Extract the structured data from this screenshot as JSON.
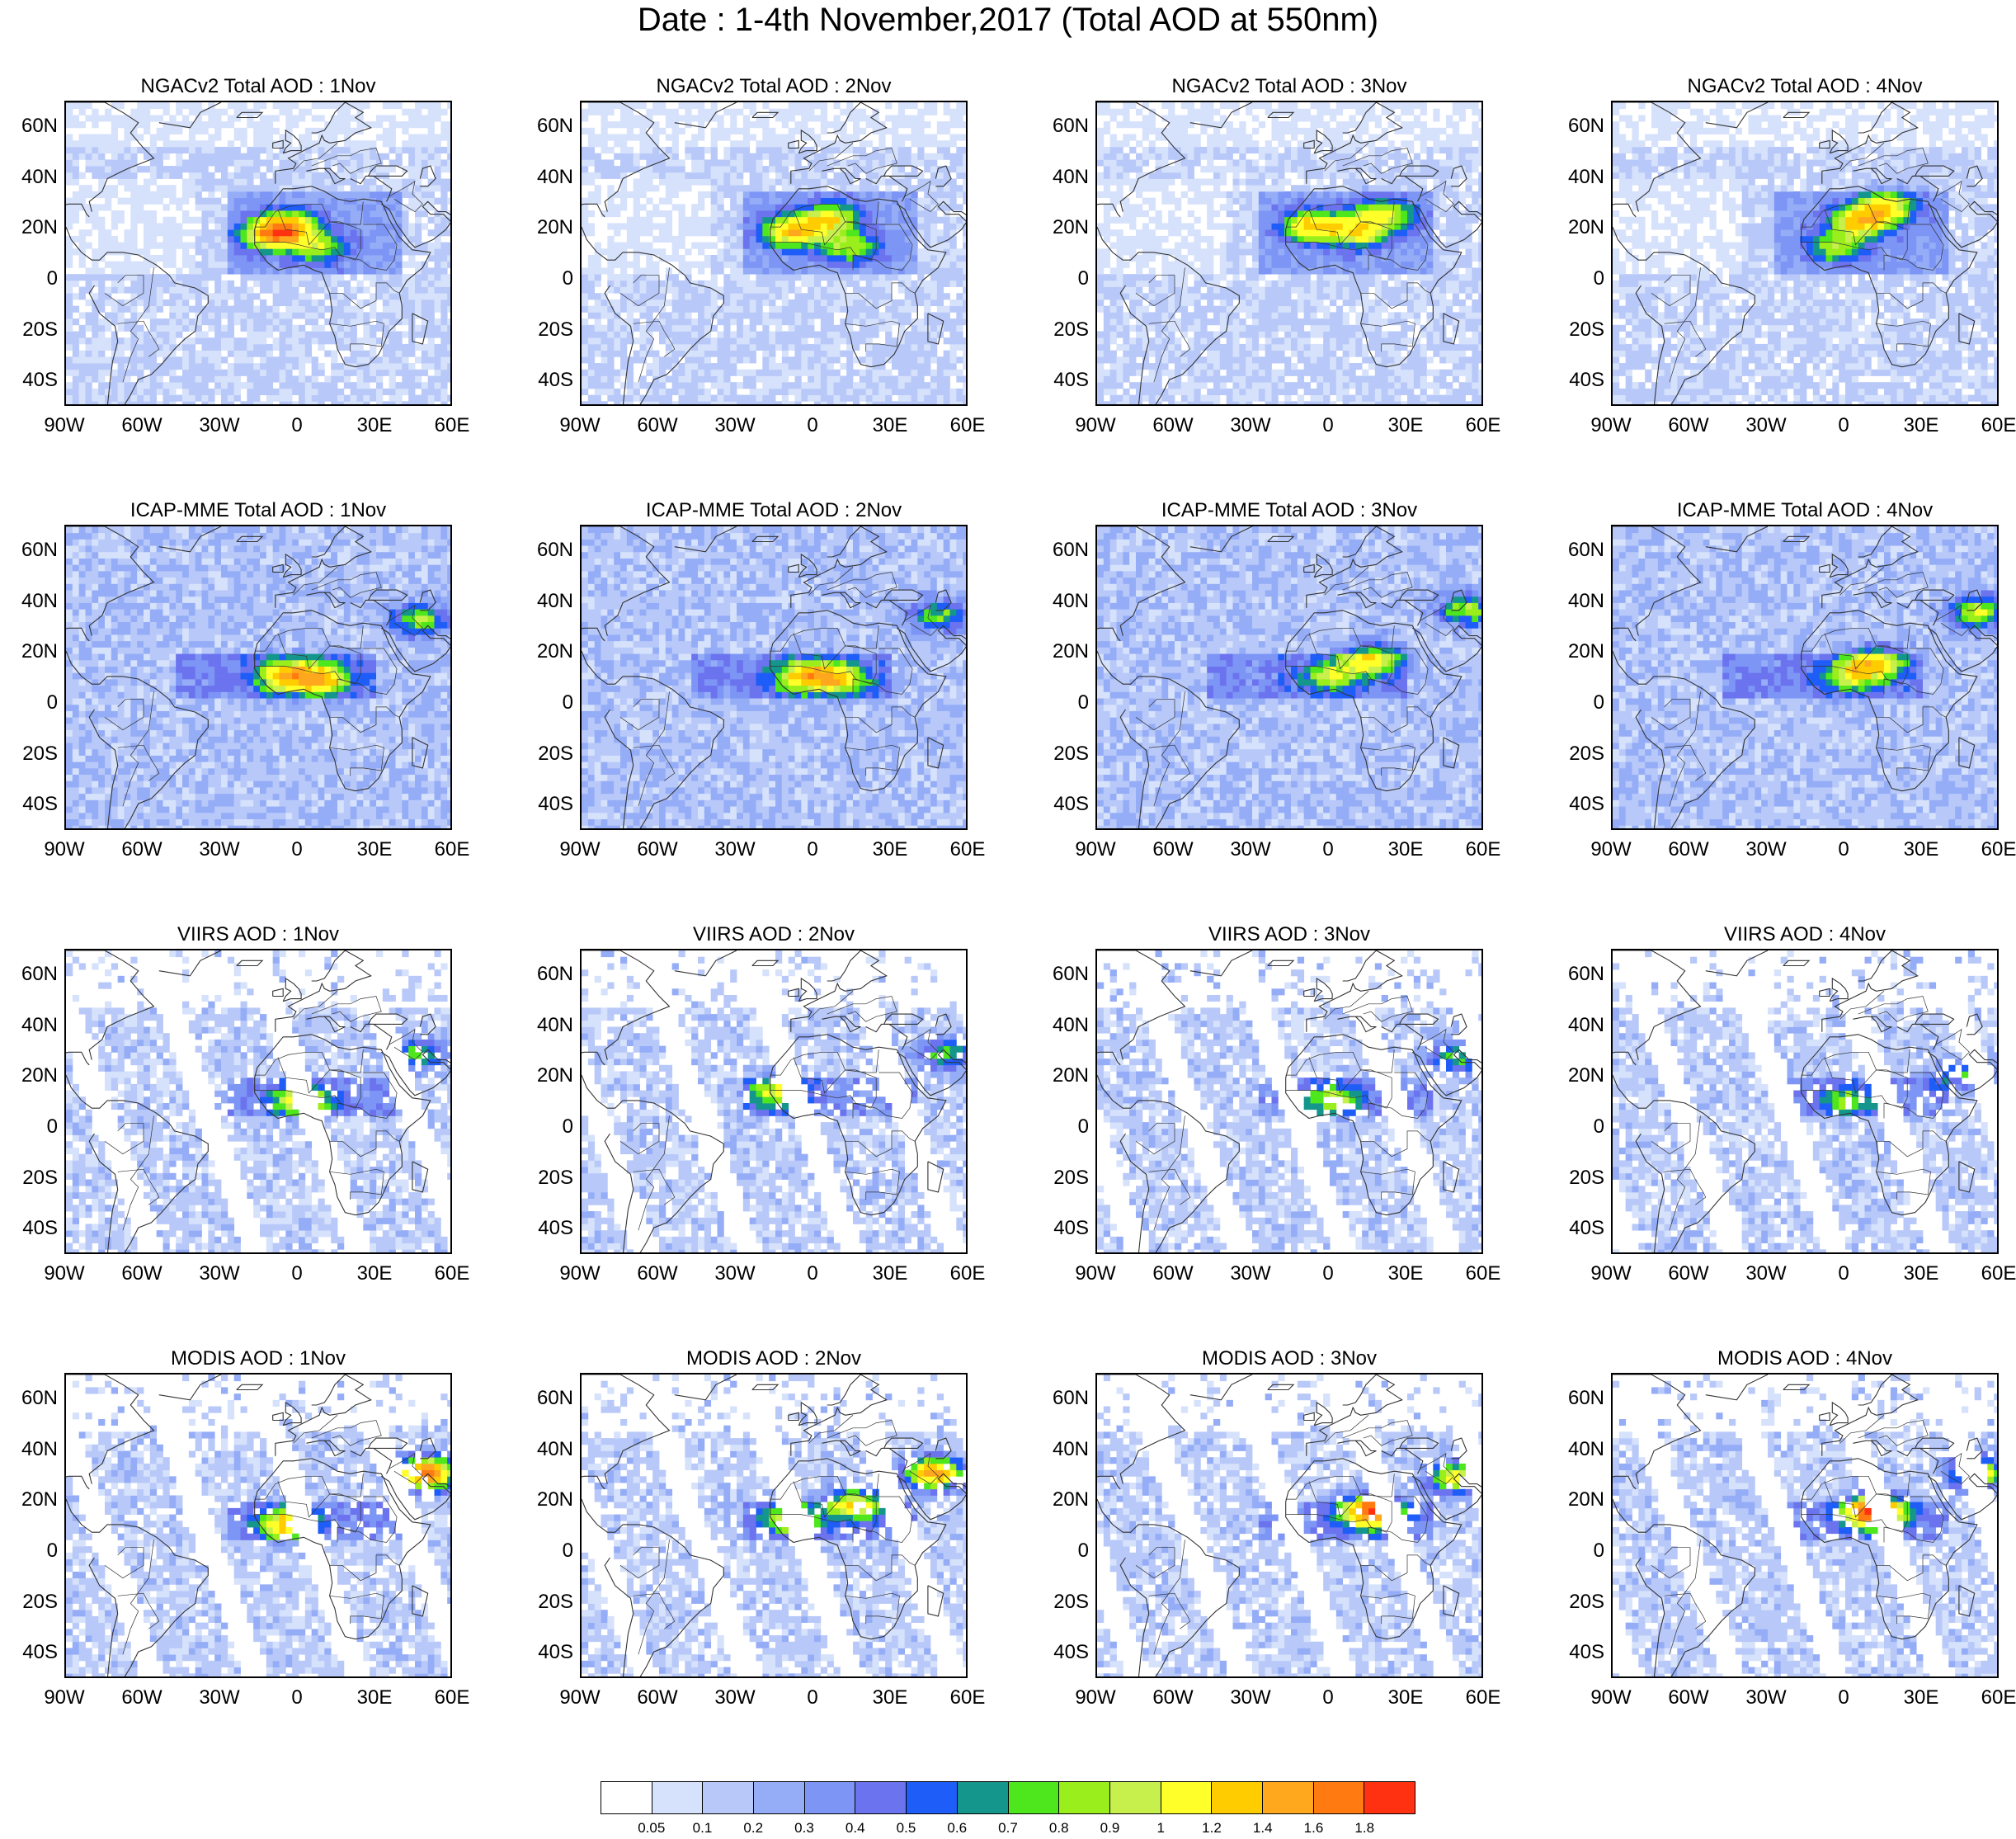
{
  "title": "Date : 1-4th November,2017 (Total AOD at 550nm)",
  "lat_ticks": [
    "60N",
    "40N",
    "20N",
    "0",
    "20S",
    "40S"
  ],
  "lon_ticks": [
    "90W",
    "60W",
    "30W",
    "0",
    "30E",
    "60E"
  ],
  "map_extent": {
    "lon": [
      -90,
      60
    ],
    "lat": [
      -50,
      70
    ]
  },
  "panels": [
    {
      "row": 0,
      "col": 0,
      "title": "NGACv2 Total AOD : 1Nov",
      "type": "model",
      "hot": [
        [
          -12,
          17,
          1
        ],
        [
          -5,
          20,
          0.85
        ],
        [
          6,
          12,
          0.6
        ]
      ],
      "level": "low"
    },
    {
      "row": 0,
      "col": 1,
      "title": "NGACv2 Total AOD : 2Nov",
      "type": "model",
      "hot": [
        [
          -10,
          18,
          1
        ],
        [
          5,
          23,
          0.8
        ],
        [
          12,
          12,
          0.6
        ]
      ],
      "level": "low"
    },
    {
      "row": 0,
      "col": 2,
      "title": "NGACv2 Total AOD : 3Nov",
      "type": "model",
      "hot": [
        [
          -8,
          20,
          1
        ],
        [
          10,
          18,
          0.8
        ],
        [
          20,
          25,
          0.7
        ]
      ],
      "level": "low"
    },
    {
      "row": 0,
      "col": 3,
      "title": "NGACv2 Total AOD : 4Nov",
      "type": "model",
      "hot": [
        [
          5,
          22,
          1
        ],
        [
          15,
          28,
          0.8
        ],
        [
          -5,
          12,
          0.6
        ]
      ],
      "level": "low"
    },
    {
      "row": 1,
      "col": 0,
      "title": "ICAP-MME Total AOD : 1Nov",
      "type": "model",
      "hot": [
        [
          -5,
          10,
          1
        ],
        [
          8,
          9,
          0.8
        ],
        [
          45,
          32,
          0.7
        ]
      ],
      "level": "mid"
    },
    {
      "row": 1,
      "col": 1,
      "title": "ICAP-MME Total AOD : 2Nov",
      "type": "model",
      "hot": [
        [
          -5,
          10,
          0.9
        ],
        [
          8,
          9,
          0.8
        ],
        [
          47,
          34,
          0.6
        ]
      ],
      "level": "mid"
    },
    {
      "row": 1,
      "col": 2,
      "title": "ICAP-MME Total AOD : 3Nov",
      "type": "model",
      "hot": [
        [
          15,
          17,
          0.8
        ],
        [
          0,
          10,
          0.6
        ],
        [
          52,
          36,
          0.7
        ]
      ],
      "level": "mid"
    },
    {
      "row": 1,
      "col": 3,
      "title": "ICAP-MME Total AOD : 4Nov",
      "type": "model",
      "hot": [
        [
          10,
          15,
          0.85
        ],
        [
          50,
          35,
          0.8
        ],
        [
          0,
          10,
          0.6
        ]
      ],
      "level": "mid"
    },
    {
      "row": 2,
      "col": 0,
      "title": "VIIRS AOD : 1Nov",
      "type": "satellite",
      "hot": [
        [
          0,
          10,
          0.8
        ],
        [
          45,
          28,
          0.6
        ]
      ],
      "level": "sat"
    },
    {
      "row": 2,
      "col": 1,
      "title": "VIIRS AOD : 2Nov",
      "type": "satellite",
      "hot": [
        [
          -15,
          13,
          0.7
        ],
        [
          50,
          28,
          0.6
        ]
      ],
      "level": "sat"
    },
    {
      "row": 2,
      "col": 2,
      "title": "VIIRS AOD : 3Nov",
      "type": "satellite",
      "hot": [
        [
          0,
          10,
          0.6
        ],
        [
          48,
          27,
          0.6
        ]
      ],
      "level": "sat"
    },
    {
      "row": 2,
      "col": 3,
      "title": "VIIRS AOD : 4Nov",
      "type": "satellite",
      "hot": [
        [
          0,
          10,
          0.5
        ],
        [
          45,
          20,
          0.5
        ]
      ],
      "level": "sat"
    },
    {
      "row": 3,
      "col": 0,
      "title": "MODIS AOD : 1Nov",
      "type": "satellite",
      "hot": [
        [
          -5,
          10,
          1
        ],
        [
          48,
          30,
          1.6
        ]
      ],
      "level": "sat"
    },
    {
      "row": 3,
      "col": 1,
      "title": "MODIS AOD : 2Nov",
      "type": "satellite",
      "hot": [
        [
          15,
          18,
          0.9
        ],
        [
          45,
          30,
          1.3
        ],
        [
          -10,
          12,
          0.7
        ]
      ],
      "level": "sat"
    },
    {
      "row": 3,
      "col": 2,
      "title": "MODIS AOD : 3Nov",
      "type": "satellite",
      "hot": [
        [
          15,
          15,
          1.5
        ],
        [
          48,
          28,
          1.0
        ]
      ],
      "level": "sat"
    },
    {
      "row": 3,
      "col": 3,
      "title": "MODIS AOD : 4Nov",
      "type": "satellite",
      "hot": [
        [
          10,
          15,
          1.7
        ],
        [
          50,
          30,
          1.0
        ]
      ],
      "level": "sat"
    }
  ],
  "colorbar": {
    "colors": [
      "#ffffff",
      "#d6e1fb",
      "#b8c9f9",
      "#95adf7",
      "#7d95f5",
      "#6b73ee",
      "#1e5df7",
      "#14968d",
      "#4ee61c",
      "#9aee1b",
      "#c8f04c",
      "#ffff2a",
      "#ffcc00",
      "#ffa81e",
      "#ff7b12",
      "#ff3111"
    ],
    "labels": [
      "0.05",
      "0.1",
      "0.2",
      "0.3",
      "0.4",
      "0.5",
      "0.6",
      "0.7",
      "0.8",
      "0.9",
      "1",
      "1.2",
      "1.4",
      "1.6",
      "1.8"
    ],
    "bounds": [
      0.05,
      0.1,
      0.2,
      0.3,
      0.4,
      0.5,
      0.6,
      0.7,
      0.8,
      0.9,
      1,
      1.2,
      1.4,
      1.6,
      1.8
    ]
  }
}
